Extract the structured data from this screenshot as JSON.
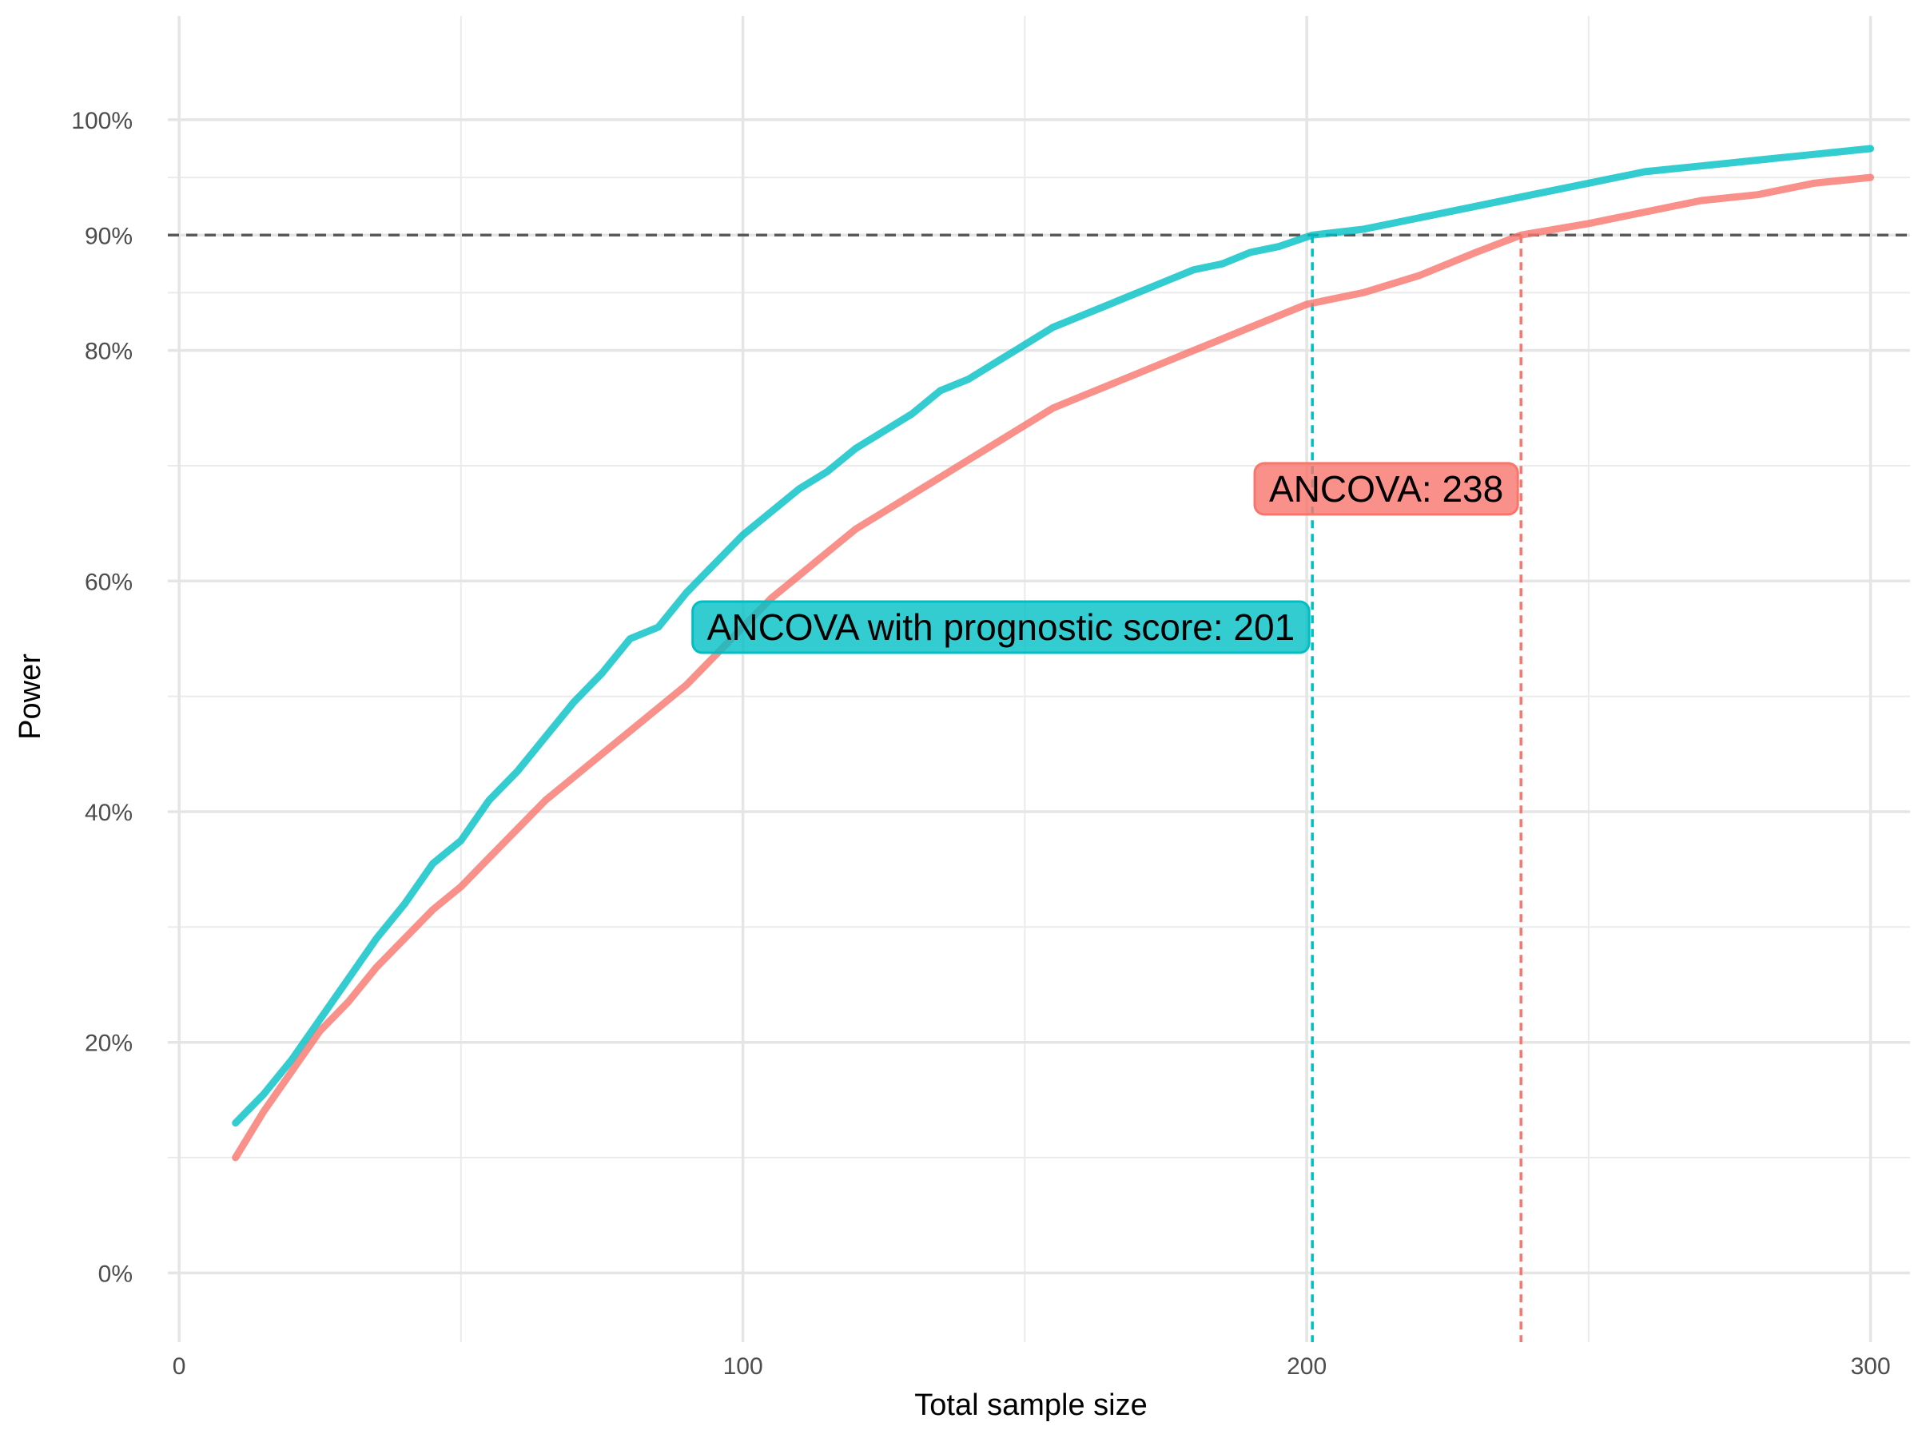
{
  "chart_data": {
    "type": "line",
    "title": "",
    "xlabel": "Total sample size",
    "ylabel": "Power",
    "xlim": [
      -2,
      307
    ],
    "ylim": [
      -0.06,
      1.09
    ],
    "x_ticks": [
      0,
      100,
      200,
      300
    ],
    "x_tick_labels": [
      "0",
      "100",
      "200",
      "300"
    ],
    "y_ticks": [
      0,
      0.2,
      0.4,
      0.6,
      0.8,
      0.9,
      1.0
    ],
    "y_tick_labels": [
      "0%",
      "20%",
      "40%",
      "60%",
      "80%",
      "90%",
      "100%"
    ],
    "y_minor_gridlines": [
      0.1,
      0.3,
      0.5,
      0.7,
      0.85,
      0.95
    ],
    "x_minor_gridlines": [
      50,
      150,
      250
    ],
    "grid": true,
    "legend": "none",
    "reference_line": {
      "y": 0.9,
      "style": "dashed",
      "color": "#595959"
    },
    "series": [
      {
        "color": "#00BFC4",
        "x": [
          10,
          15,
          20,
          25,
          30,
          35,
          40,
          45,
          50,
          55,
          60,
          65,
          70,
          75,
          80,
          85,
          90,
          95,
          100,
          105,
          110,
          115,
          120,
          125,
          130,
          135,
          140,
          145,
          150,
          155,
          160,
          165,
          170,
          175,
          180,
          185,
          190,
          195,
          201,
          210,
          220,
          230,
          240,
          250,
          260,
          270,
          280,
          290,
          300
        ],
        "y": [
          0.13,
          0.155,
          0.185,
          0.22,
          0.255,
          0.29,
          0.32,
          0.355,
          0.375,
          0.41,
          0.435,
          0.465,
          0.495,
          0.52,
          0.55,
          0.56,
          0.59,
          0.615,
          0.64,
          0.66,
          0.68,
          0.695,
          0.715,
          0.73,
          0.745,
          0.765,
          0.775,
          0.79,
          0.805,
          0.82,
          0.83,
          0.84,
          0.85,
          0.86,
          0.87,
          0.875,
          0.885,
          0.89,
          0.9,
          0.905,
          0.915,
          0.925,
          0.935,
          0.945,
          0.955,
          0.96,
          0.965,
          0.97,
          0.975
        ]
      },
      {
        "color": "#F8766D",
        "x": [
          10,
          15,
          20,
          25,
          30,
          35,
          40,
          45,
          50,
          55,
          60,
          65,
          70,
          75,
          80,
          85,
          90,
          95,
          100,
          105,
          110,
          115,
          120,
          125,
          130,
          135,
          140,
          145,
          150,
          155,
          160,
          165,
          170,
          175,
          180,
          185,
          190,
          195,
          200,
          210,
          220,
          230,
          238,
          250,
          260,
          270,
          280,
          290,
          300
        ],
        "y": [
          0.1,
          0.14,
          0.175,
          0.21,
          0.235,
          0.265,
          0.29,
          0.315,
          0.335,
          0.36,
          0.385,
          0.41,
          0.43,
          0.45,
          0.47,
          0.49,
          0.51,
          0.535,
          0.56,
          0.585,
          0.605,
          0.625,
          0.645,
          0.66,
          0.675,
          0.69,
          0.705,
          0.72,
          0.735,
          0.75,
          0.76,
          0.77,
          0.78,
          0.79,
          0.8,
          0.81,
          0.82,
          0.83,
          0.84,
          0.85,
          0.865,
          0.885,
          0.9,
          0.91,
          0.92,
          0.93,
          0.935,
          0.945,
          0.95
        ]
      }
    ],
    "annotations": [
      {
        "text": "ANCOVA with prognostic score: 201",
        "x": 201,
        "y": 0.56,
        "color": "#00BFC4"
      },
      {
        "text": "ANCOVA: 238",
        "x": 238,
        "y": 0.68,
        "color": "#F8766D"
      }
    ],
    "vlines": [
      {
        "x": 201,
        "color": "#00BFC4",
        "style": "dashed"
      },
      {
        "x": 238,
        "color": "#F8766D",
        "style": "dashed"
      }
    ]
  }
}
